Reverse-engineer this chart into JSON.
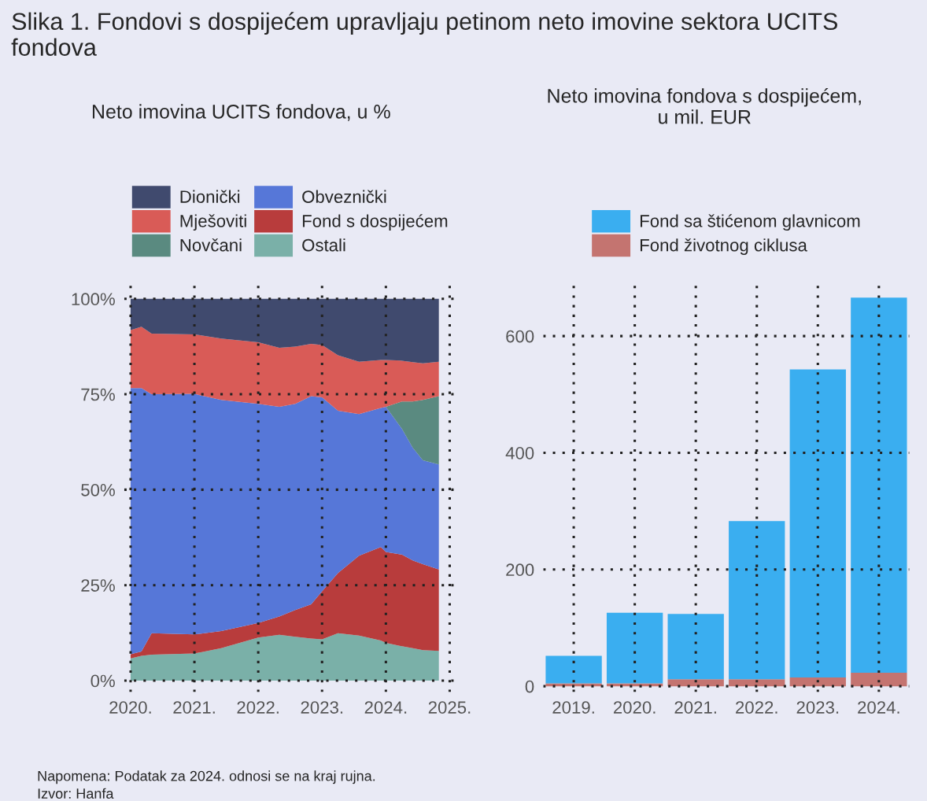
{
  "chart_data": [
    {
      "type": "area",
      "stacked": true,
      "title": "Slika 1. Fondovi s dospijećem upravljaju petinom neto imovine sektora UCITS fondova",
      "subtitle": "Neto imovina UCITS fondova, u %",
      "x": [
        2020.0,
        2020.17,
        2020.33,
        2021.0,
        2021.42,
        2022.0,
        2022.33,
        2022.58,
        2022.83,
        2023.0,
        2023.25,
        2023.58,
        2023.92,
        2024.0,
        2024.25,
        2024.42,
        2024.58,
        2024.83
      ],
      "series": [
        {
          "name": "Ostali",
          "color": "#7ab0a8",
          "values": [
            5.8,
            6.5,
            6.8,
            7.1,
            8.5,
            11.3,
            12.0,
            11.5,
            11.0,
            10.8,
            12.4,
            11.8,
            10.5,
            9.9,
            9.0,
            8.5,
            8.0,
            7.8
          ]
        },
        {
          "name": "Fond s dospijećem",
          "color": "#b83c3c",
          "values": [
            1.1,
            1.1,
            5.6,
            5.0,
            4.5,
            3.8,
            4.8,
            7.0,
            9.0,
            12.6,
            15.8,
            20.9,
            24.5,
            23.8,
            24.0,
            23.0,
            22.5,
            21.3
          ]
        },
        {
          "name": "Obveznički",
          "color": "#5677d8",
          "values": [
            69.7,
            69.0,
            62.6,
            63.0,
            60.5,
            57.4,
            54.9,
            54.0,
            54.5,
            50.8,
            42.5,
            37.1,
            36.4,
            38.0,
            33.0,
            29.5,
            27.2,
            27.5
          ]
        },
        {
          "name": "Novčani",
          "color": "#5a8a80",
          "values": [
            0,
            0,
            0,
            0,
            0,
            0,
            0,
            0,
            0,
            0,
            0,
            0,
            0,
            0,
            7.1,
            12.1,
            15.8,
            17.9
          ]
        },
        {
          "name": "Mješoviti",
          "color": "#d95b57",
          "values": [
            15.2,
            16.1,
            15.9,
            15.6,
            16.1,
            16.1,
            15.5,
            15.0,
            13.7,
            13.7,
            14.5,
            13.7,
            12.6,
            12.3,
            10.7,
            10.3,
            9.6,
            9.0
          ]
        },
        {
          "name": "Dionički",
          "color": "#404a6e",
          "values": [
            8.2,
            7.3,
            9.1,
            9.3,
            10.4,
            11.4,
            12.8,
            12.5,
            11.8,
            12.1,
            14.8,
            16.5,
            16.0,
            16.0,
            16.2,
            16.6,
            16.9,
            16.5
          ]
        }
      ],
      "xlim": [
        2019.9,
        2025.1
      ],
      "xticks": [
        {
          "value": 2020,
          "label": "2020."
        },
        {
          "value": 2021,
          "label": "2021."
        },
        {
          "value": 2022,
          "label": "2022."
        },
        {
          "value": 2023,
          "label": "2023."
        },
        {
          "value": 2024,
          "label": "2024."
        },
        {
          "value": 2025,
          "label": "2025."
        }
      ],
      "ylim": [
        -3,
        104
      ],
      "yticks": [
        {
          "value": 0,
          "label": "0%"
        },
        {
          "value": 25,
          "label": "25%"
        },
        {
          "value": 50,
          "label": "50%"
        },
        {
          "value": 75,
          "label": "75%"
        },
        {
          "value": 100,
          "label": "100%"
        }
      ],
      "grid": true,
      "legend": "top",
      "annotations": [
        "Napomena: Podatak za 2024. odnosi se na kraj rujna.",
        "Izvor: Hanfa"
      ]
    },
    {
      "type": "bar",
      "stacked": true,
      "title": "Neto imovina fondova s dospijećem,\nu mil. EUR",
      "categories": [
        "2019.",
        "2020.",
        "2021.",
        "2022.",
        "2023.",
        "2024."
      ],
      "series": [
        {
          "name": "Fond životnog ciklusa",
          "color": "#c47470",
          "values": [
            5,
            5,
            12,
            12,
            15,
            23
          ]
        },
        {
          "name": "Fond sa štićenom glavnicom",
          "color": "#3aaef0",
          "values": [
            47,
            121,
            112,
            271,
            528,
            643
          ]
        }
      ],
      "ylim": [
        -10,
        690
      ],
      "yticks": [
        0,
        200,
        400,
        600
      ],
      "grid": true,
      "legend": "top"
    }
  ]
}
